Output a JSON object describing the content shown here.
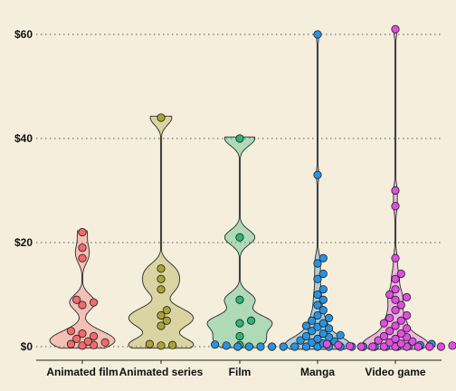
{
  "chart_data": {
    "type": "violin",
    "title": "",
    "xlabel": "",
    "ylabel": "",
    "ylim": [
      -2,
      62
    ],
    "y_ticks": [
      0,
      20,
      40,
      60
    ],
    "y_tick_labels": [
      "$0",
      "$20",
      "$40",
      "$60"
    ],
    "grid": "horizontal dotted",
    "legend": "none",
    "categories": [
      "Animated film",
      "Animated series",
      "Film",
      "Manga",
      "Video game"
    ],
    "colors": [
      "#f06b6b",
      "#a9a334",
      "#2cb573",
      "#2a93e0",
      "#df4fe0"
    ],
    "series": [
      {
        "category": "Animated film",
        "values": [
          22,
          19,
          17,
          9,
          8.5,
          8,
          3,
          2.5,
          2,
          1.5,
          1,
          0.8,
          0.5,
          0.3,
          0.2
        ]
      },
      {
        "category": "Animated series",
        "values": [
          44,
          15,
          13,
          11,
          7,
          6,
          5,
          4,
          0.5,
          0.3,
          0.2
        ]
      },
      {
        "category": "Film",
        "values": [
          40,
          21,
          9,
          5,
          4.5,
          2,
          0.3
        ]
      },
      {
        "category": "Manga",
        "values": [
          60,
          33,
          17,
          16,
          14,
          13,
          11,
          10,
          9,
          8,
          7,
          6,
          5.5,
          5,
          4.5,
          4,
          3.8,
          3.5,
          3,
          2.5,
          2.2,
          2,
          1.8,
          1.5,
          1.2,
          1,
          0.8,
          0.6,
          0.5,
          0.4,
          0.3,
          0.2,
          0.1,
          0,
          0,
          0,
          0,
          0,
          0,
          0,
          0,
          0,
          0,
          0,
          0,
          0,
          0,
          0
        ]
      },
      {
        "category": "Video game",
        "values": [
          61,
          30,
          27,
          17,
          14,
          13,
          11,
          10,
          9.5,
          9,
          8,
          7,
          6,
          5.5,
          5,
          4.5,
          4,
          3.5,
          3,
          2.5,
          2,
          1.8,
          1.5,
          1.2,
          1,
          0.8,
          0.6,
          0.5,
          0.4,
          0.3,
          0.2,
          0.1,
          0,
          0,
          0,
          0,
          0,
          0,
          0,
          0
        ]
      }
    ]
  }
}
